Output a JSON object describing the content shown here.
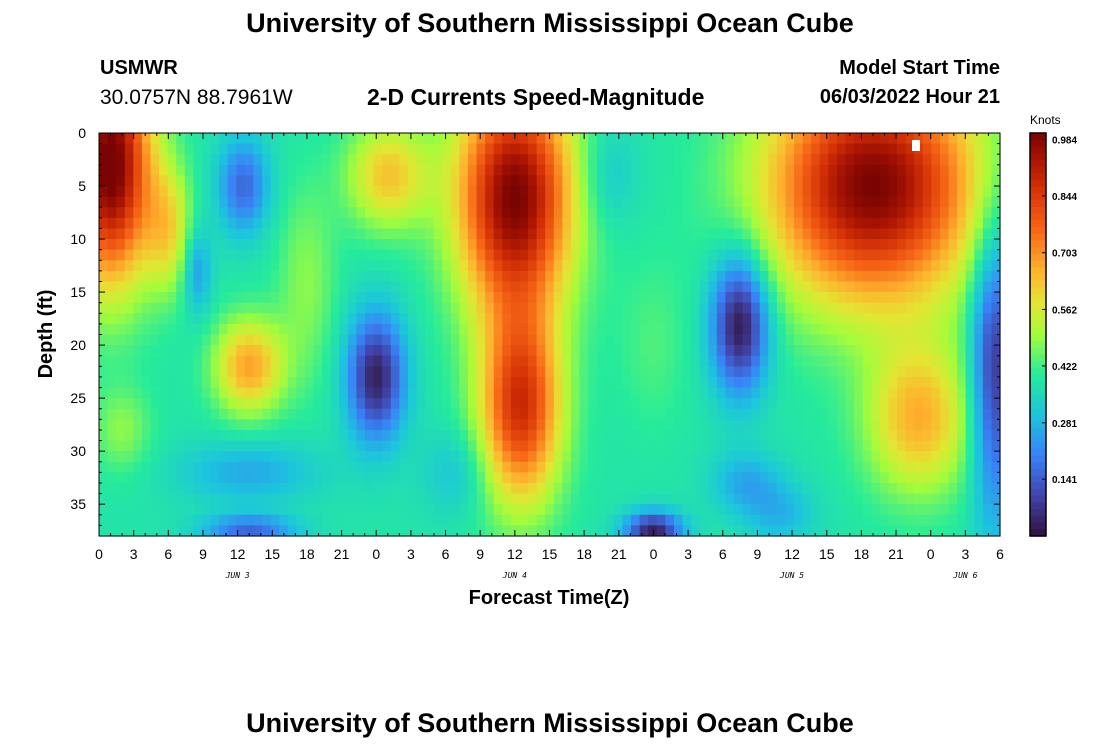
{
  "header": {
    "title": "University of Southern Mississippi Ocean Cube",
    "station": "USMWR",
    "coords": "30.0757N  88.7961W",
    "subtitle": "2-D Currents Speed-Magnitude",
    "model_start_label": "Model Start Time",
    "model_start_value": "06/03/2022 Hour 21"
  },
  "footer": {
    "title": "University of Southern Mississippi Ocean Cube"
  },
  "chart_data": {
    "type": "heatmap",
    "title": "2-D Currents Speed-Magnitude",
    "xlabel": "Forecast Time(Z)",
    "ylabel": "Depth (ft)",
    "x_tick_labels": [
      "0",
      "3",
      "6",
      "9",
      "12",
      "15",
      "18",
      "21",
      "0",
      "3",
      "6",
      "9",
      "12",
      "15",
      "18",
      "21",
      "0",
      "3",
      "6",
      "9",
      "12",
      "15",
      "18",
      "21",
      "0",
      "3",
      "6"
    ],
    "day_labels": [
      {
        "label": "JUN 3",
        "at_tick": 4
      },
      {
        "label": "JUN 4",
        "at_tick": 12
      },
      {
        "label": "JUN 5",
        "at_tick": 20
      },
      {
        "label": "JUN 6",
        "at_tick": 25
      }
    ],
    "y_ticks": [
      0,
      5,
      10,
      15,
      20,
      25,
      30,
      35
    ],
    "ylim": [
      38,
      0
    ],
    "x_range_hours": [
      0,
      78
    ],
    "colorbar": {
      "units": "Knots",
      "ticks": [
        "0.141",
        "0.281",
        "0.422",
        "0.562",
        "0.703",
        "0.844",
        "0.984"
      ],
      "range": [
        0.0,
        1.0
      ]
    },
    "field_estimate": {
      "note": "",
      "base": 0.38,
      "features": [
        {
          "x": 1,
          "y": 3,
          "sx": 3.5,
          "sy": 11,
          "a": 0.65
        },
        {
          "x": 2,
          "y": 28,
          "sx": 2.5,
          "sy": 4,
          "a": 0.1
        },
        {
          "x": 6,
          "y": 9,
          "sx": 2,
          "sy": 6,
          "a": 0.2
        },
        {
          "x": 12.5,
          "y": 5,
          "sx": 2.2,
          "sy": 4.5,
          "a": -0.22
        },
        {
          "x": 8.5,
          "y": 13,
          "sx": 1.2,
          "sy": 4,
          "a": -0.15
        },
        {
          "x": 13,
          "y": 22,
          "sx": 3,
          "sy": 4.5,
          "a": 0.3
        },
        {
          "x": 13,
          "y": 32,
          "sx": 6,
          "sy": 3,
          "a": -0.12
        },
        {
          "x": 13,
          "y": 37.5,
          "sx": 4,
          "sy": 1.5,
          "a": -0.22
        },
        {
          "x": 18,
          "y": 14,
          "sx": 2.5,
          "sy": 9,
          "a": 0.1
        },
        {
          "x": 25,
          "y": 4,
          "sx": 3.5,
          "sy": 5,
          "a": 0.25
        },
        {
          "x": 24,
          "y": 23,
          "sx": 2.5,
          "sy": 6,
          "a": -0.35
        },
        {
          "x": 36,
          "y": 6,
          "sx": 5,
          "sy": 11,
          "a": 0.62
        },
        {
          "x": 36.5,
          "y": 26,
          "sx": 3.5,
          "sy": 9,
          "a": 0.48
        },
        {
          "x": 31,
          "y": 32,
          "sx": 3,
          "sy": 4,
          "a": -0.08
        },
        {
          "x": 44,
          "y": 4,
          "sx": 2.5,
          "sy": 5,
          "a": -0.08
        },
        {
          "x": 48,
          "y": 37.5,
          "sx": 2.5,
          "sy": 1.8,
          "a": -0.35
        },
        {
          "x": 48,
          "y": 20,
          "sx": 3,
          "sy": 8,
          "a": 0.05
        },
        {
          "x": 55.5,
          "y": 18,
          "sx": 2.5,
          "sy": 6.5,
          "a": -0.38
        },
        {
          "x": 56,
          "y": 33,
          "sx": 3,
          "sy": 3,
          "a": -0.12
        },
        {
          "x": 67,
          "y": 5,
          "sx": 9,
          "sy": 11,
          "a": 0.62
        },
        {
          "x": 71,
          "y": 27,
          "sx": 4.5,
          "sy": 7,
          "a": 0.28
        },
        {
          "x": 59,
          "y": 36,
          "sx": 3,
          "sy": 3,
          "a": -0.1
        },
        {
          "x": 77.5,
          "y": 22,
          "sx": 2,
          "sy": 14,
          "a": -0.32
        }
      ]
    }
  }
}
